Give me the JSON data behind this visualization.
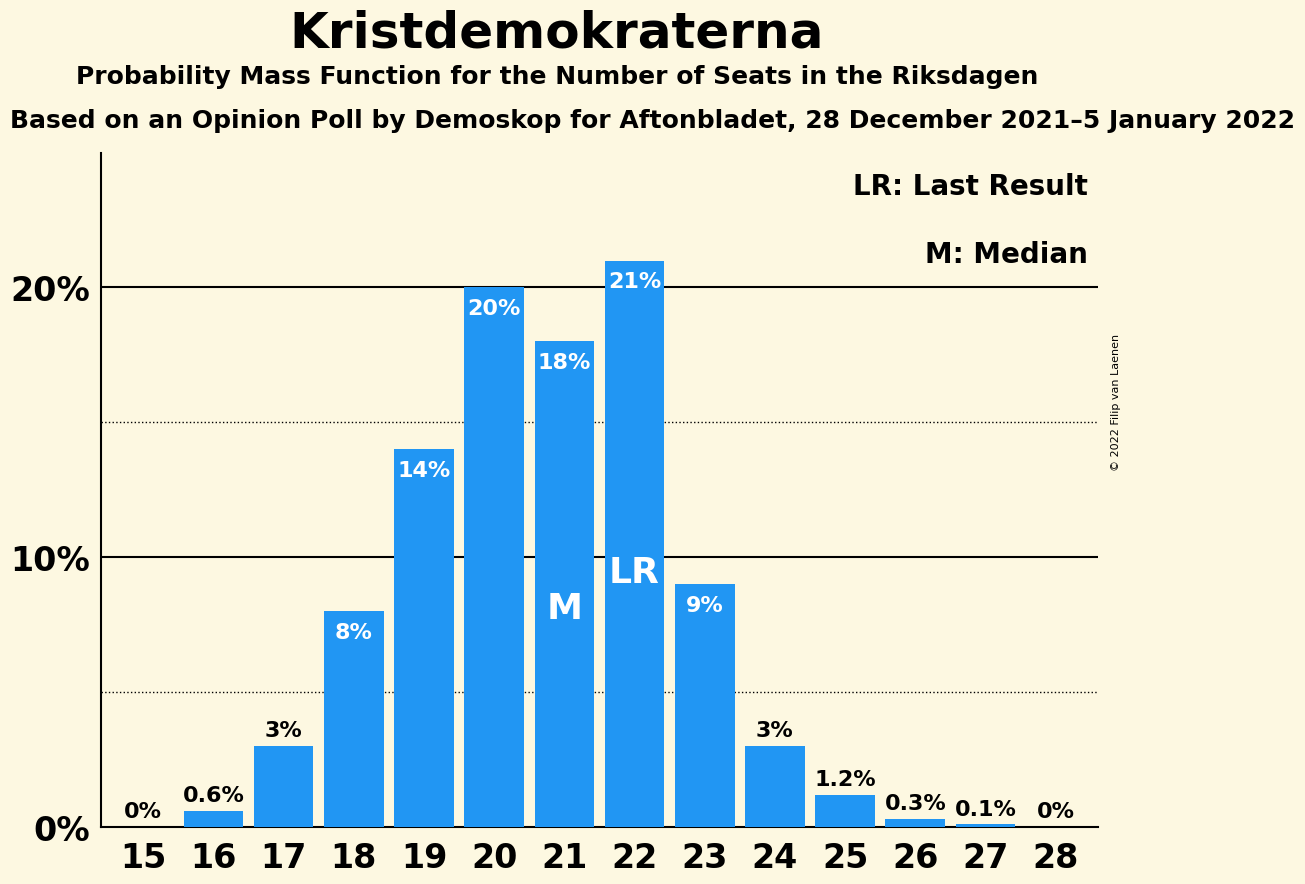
{
  "title": "Kristdemokraterna",
  "subtitle": "Probability Mass Function for the Number of Seats in the Riksdagen",
  "subtitle2": "Based on an Opinion Poll by Demoskop for Aftonbladet, 28 December 2021–5 January 2022",
  "copyright": "© 2022 Filip van Laenen",
  "categories": [
    15,
    16,
    17,
    18,
    19,
    20,
    21,
    22,
    23,
    24,
    25,
    26,
    27,
    28
  ],
  "values": [
    0.0,
    0.6,
    3.0,
    8.0,
    14.0,
    20.0,
    18.0,
    21.0,
    9.0,
    3.0,
    1.2,
    0.3,
    0.1,
    0.0
  ],
  "bar_color": "#2196f3",
  "background_color": "#fdf8e1",
  "label_color_inside": "white",
  "label_color_outside": "black",
  "median_bar": 21,
  "last_result_bar": 22,
  "median_label": "M",
  "last_result_label": "LR",
  "legend_lr": "LR: Last Result",
  "legend_m": "M: Median",
  "dotted_lines": [
    5.0,
    15.0
  ],
  "solid_lines": [
    10.0,
    20.0
  ],
  "ylim": [
    0,
    25
  ],
  "title_fontsize": 36,
  "subtitle_fontsize": 18,
  "subtitle2_fontsize": 18,
  "bar_label_fontsize": 16,
  "axis_label_fontsize": 22,
  "inline_label_fontsize": 26,
  "legend_fontsize": 20,
  "ytick_fontsize": 24,
  "xtick_fontsize": 24,
  "ytick_positions": [
    0,
    10,
    20
  ],
  "ytick_labels": [
    "0%",
    "10%",
    "20%"
  ]
}
